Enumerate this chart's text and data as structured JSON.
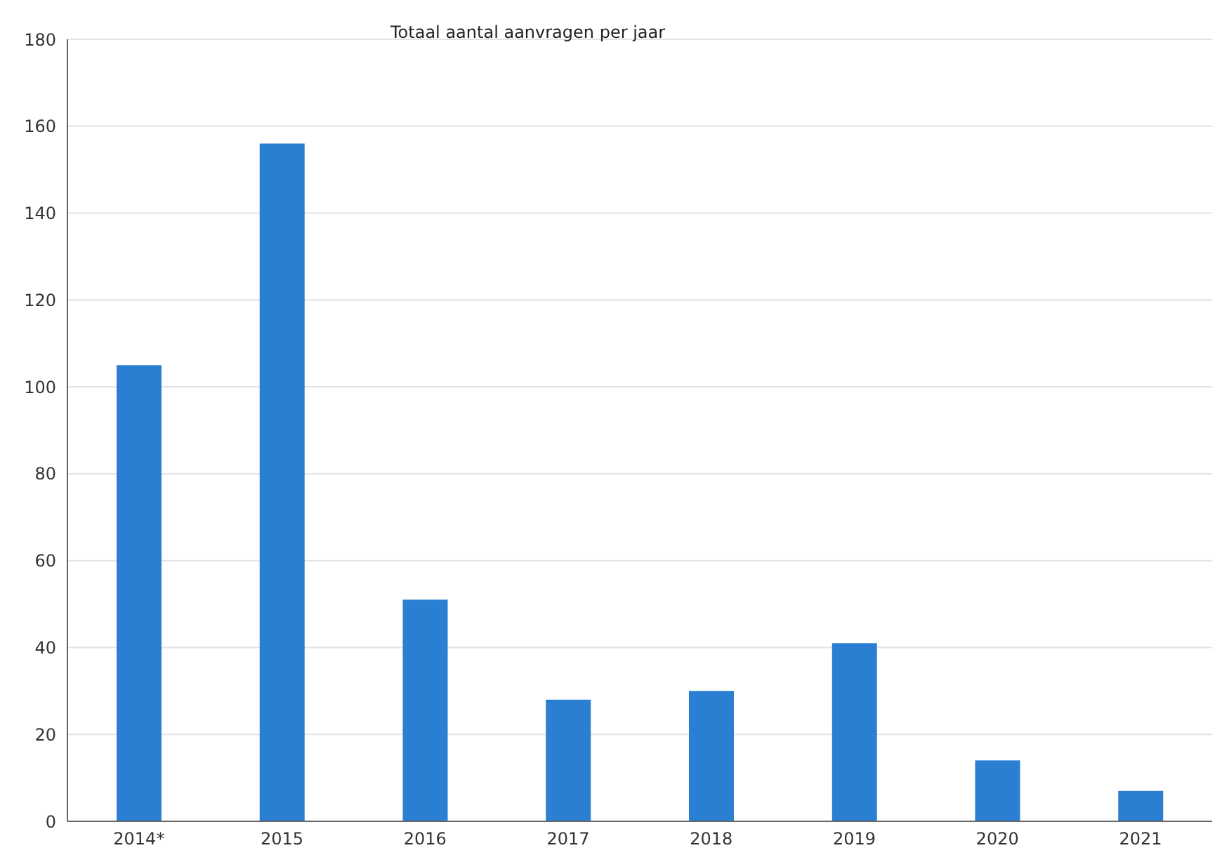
{
  "chart_data": {
    "type": "bar",
    "title": "Totaal aantal aanvragen per jaar",
    "categories": [
      "2014*",
      "2015",
      "2016",
      "2017",
      "2018",
      "2019",
      "2020",
      "2021"
    ],
    "values": [
      105,
      156,
      51,
      28,
      30,
      41,
      14,
      7
    ],
    "color": "#2a7fd2",
    "ylim": [
      0,
      180
    ],
    "yticks": [
      0,
      20,
      40,
      60,
      80,
      100,
      120,
      140,
      160,
      180
    ],
    "grid": "y"
  }
}
